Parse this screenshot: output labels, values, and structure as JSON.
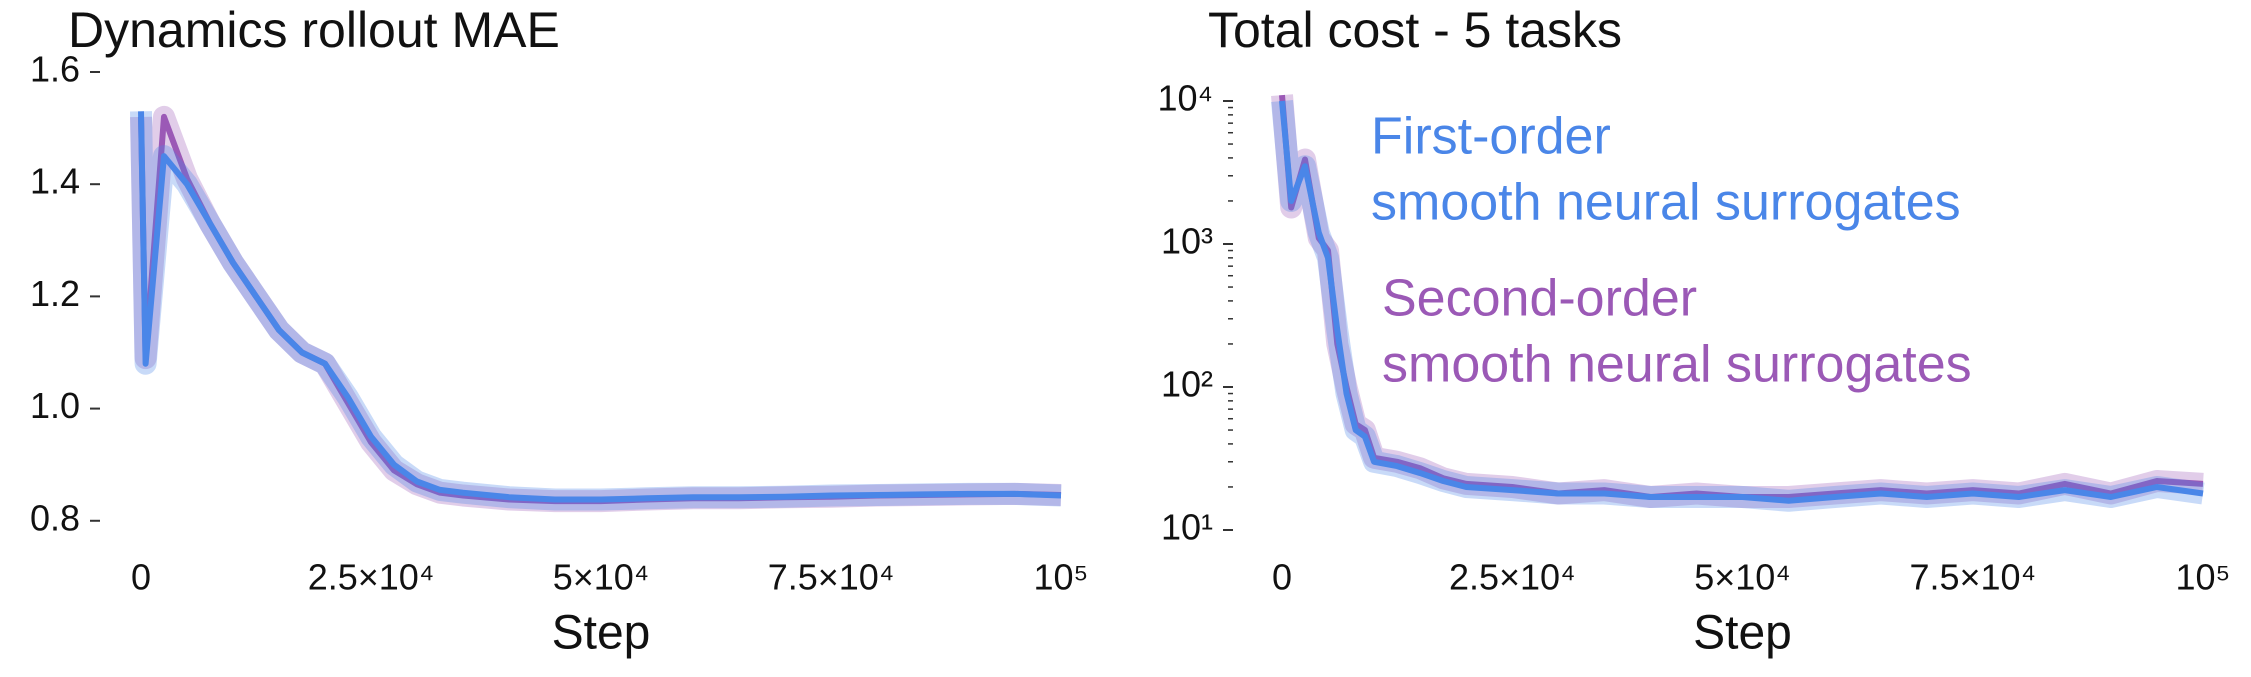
{
  "chart_data": [
    {
      "type": "line",
      "title": "Dynamics rollout MAE",
      "xlabel": "Step",
      "x": [
        0,
        500,
        2500,
        5000,
        7500,
        10000,
        12500,
        15000,
        17500,
        20000,
        22500,
        25000,
        27500,
        30000,
        32500,
        35000,
        40000,
        45000,
        50000,
        55000,
        60000,
        65000,
        70000,
        75000,
        80000,
        85000,
        90000,
        95000,
        100000
      ],
      "series": [
        {
          "color": "#9b59b6",
          "values": [
            1.52,
            1.09,
            1.52,
            1.41,
            1.33,
            1.26,
            1.2,
            1.14,
            1.1,
            1.08,
            1.01,
            0.94,
            0.89,
            0.865,
            0.85,
            0.845,
            0.838,
            0.835,
            0.835,
            0.838,
            0.84,
            0.84,
            0.842,
            0.843,
            0.845,
            0.846,
            0.847,
            0.848,
            0.846
          ]
        },
        {
          "color": "#4a86e8",
          "values": [
            1.53,
            1.08,
            1.45,
            1.4,
            1.33,
            1.26,
            1.2,
            1.14,
            1.1,
            1.08,
            1.02,
            0.95,
            0.9,
            0.87,
            0.855,
            0.85,
            0.842,
            0.838,
            0.838,
            0.84,
            0.842,
            0.842,
            0.843,
            0.845,
            0.846,
            0.847,
            0.848,
            0.848,
            0.845
          ]
        }
      ],
      "xlim": [
        0,
        100000
      ],
      "xticks": [
        0,
        {
          "value": 25000,
          "label": "2.5×10⁴"
        },
        {
          "value": 50000,
          "label": "5×10⁴"
        },
        {
          "value": 75000,
          "label": "7.5×10⁴"
        },
        {
          "value": 100000,
          "label": "10⁵"
        }
      ],
      "ylim": [
        0.78,
        1.6
      ],
      "yticks": [
        0.8,
        {
          "value": 1,
          "label": "1.0"
        },
        1.2,
        1.4,
        1.6
      ]
    },
    {
      "type": "line",
      "title": "Total cost - 5 tasks",
      "xlabel": "Step",
      "log_y": true,
      "x": [
        0,
        1000,
        2500,
        4000,
        5000,
        6000,
        7000,
        8000,
        9000,
        10000,
        12500,
        15000,
        17500,
        20000,
        25000,
        30000,
        35000,
        40000,
        45000,
        50000,
        55000,
        60000,
        65000,
        70000,
        75000,
        80000,
        85000,
        90000,
        95000,
        100000
      ],
      "series": [
        {
          "name": [
            "Second-order",
            "smooth neural surrogates"
          ],
          "color": "#9b59b6",
          "values": [
            11000,
            1800,
            3900,
            1100,
            900,
            200,
            100,
            55,
            50,
            32,
            30,
            27,
            23,
            21,
            20,
            18,
            19,
            17,
            18,
            17,
            17,
            18,
            19,
            18,
            19,
            18,
            21,
            18,
            22,
            21
          ]
        },
        {
          "name": [
            "First-order",
            "smooth neural surrogates"
          ],
          "color": "#4a86e8",
          "values": [
            10000,
            2000,
            3500,
            1200,
            800,
            250,
            90,
            50,
            45,
            30,
            28,
            25,
            22,
            20,
            19,
            18,
            18,
            17,
            17,
            17,
            16,
            17,
            18,
            17,
            18,
            17,
            19,
            17,
            20,
            18
          ]
        }
      ],
      "xlim": [
        0,
        100000
      ],
      "xticks": [
        0,
        {
          "value": 25000,
          "label": "2.5×10⁴"
        },
        {
          "value": 50000,
          "label": "5×10⁴"
        },
        {
          "value": 75000,
          "label": "7.5×10⁴"
        },
        {
          "value": 100000,
          "label": "10⁵"
        }
      ],
      "ylim": [
        10,
        10000
      ],
      "yticks": [
        {
          "value": 10,
          "label": "10¹"
        },
        {
          "value": 100,
          "label": "10²"
        },
        {
          "value": 1000,
          "label": "10³"
        },
        {
          "value": 10000,
          "label": "10⁴"
        }
      ]
    }
  ]
}
